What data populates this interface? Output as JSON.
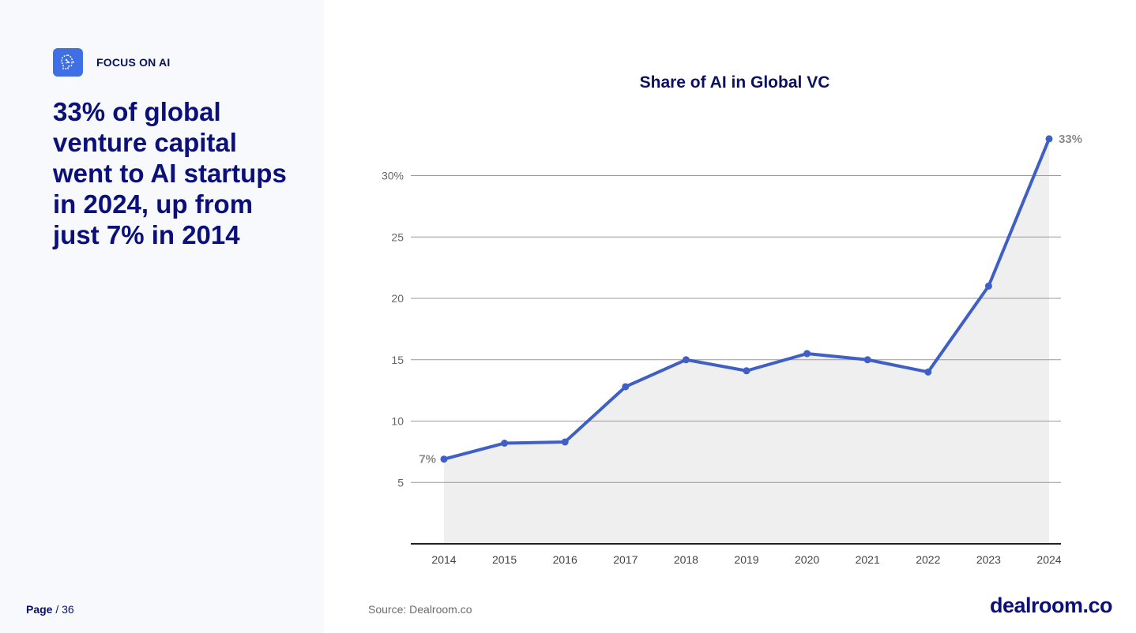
{
  "brand": {
    "label": "FOCUS ON AI",
    "icon": "brain-icon",
    "icon_color": "#3f6fe4"
  },
  "headline": "33% of global venture capital went to AI startups in 2024, up from just 7% in 2014",
  "footer": {
    "page_label": "Page",
    "page_sep": "/",
    "page_total": "36",
    "source": "Source: Dealroom.co",
    "logo": "dealroom.co"
  },
  "chart_data": {
    "type": "area",
    "title": "Share of AI in Global VC",
    "categories": [
      "2014",
      "2015",
      "2016",
      "2017",
      "2018",
      "2019",
      "2020",
      "2021",
      "2022",
      "2023",
      "2024"
    ],
    "series": [
      {
        "values": [
          6.9,
          8.2,
          8.3,
          12.8,
          15.0,
          14.1,
          15.5,
          15.0,
          14.0,
          21.0,
          33.0
        ]
      }
    ],
    "ylim": [
      0,
      33.7
    ],
    "yticks": [
      5,
      10,
      15,
      20,
      25,
      30
    ],
    "ytick_labels": [
      "5",
      "10",
      "15",
      "20",
      "25",
      "30%"
    ],
    "annotations": [
      {
        "index": 0,
        "label": "7%"
      },
      {
        "index": 10,
        "label": "33%"
      }
    ],
    "colors": {
      "line": "#3f5fc4",
      "fill": "#efefef",
      "grid": "#9a9a9a"
    },
    "grid": true,
    "legend": "none"
  }
}
